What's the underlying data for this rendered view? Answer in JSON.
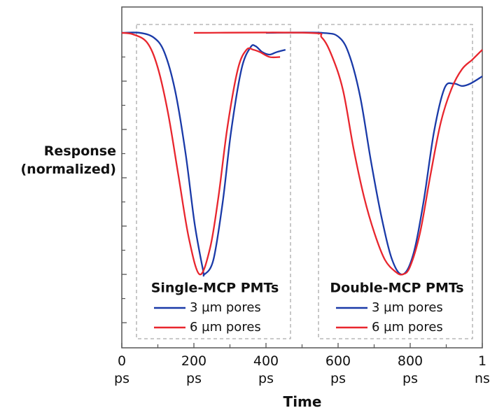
{
  "chart_data": {
    "type": "line",
    "y_label": "Response\n(normalized)",
    "x_label": "Time",
    "xlim": [
      0,
      1000
    ],
    "xticks": [
      {
        "value": 0,
        "label": "0\nps"
      },
      {
        "value": 200,
        "label": "200\nps"
      },
      {
        "value": 400,
        "label": "400\nps"
      },
      {
        "value": 600,
        "label": "600\nps"
      },
      {
        "value": 800,
        "label": "800\nps"
      },
      {
        "value": 1000,
        "label": "1\nns"
      }
    ],
    "xticks_minor": [
      100,
      300,
      500,
      700,
      900
    ],
    "ylim": [
      -1.304,
      0.107
    ],
    "yticks": [
      0,
      -0.2,
      -0.4,
      -0.6,
      -0.8,
      -1.0,
      -1.2
    ],
    "yticks_minor": [
      -0.1,
      -0.3,
      -0.5,
      -0.7,
      -0.9,
      -1.1
    ],
    "groups": [
      {
        "title": "Single-MCP PMTs",
        "series": [
          {
            "name": "3 µm pores",
            "color": "#1a3aa8",
            "x": [
              0,
              50,
              89,
              118,
              148,
              177,
              202,
              225,
              229,
              254,
              280,
              303,
              332,
              357,
              371,
              390,
              410,
              429,
              454
            ],
            "values": [
              0,
              0,
              -0.02,
              -0.08,
              -0.24,
              -0.5,
              -0.79,
              -0.98,
              -1.0,
              -0.94,
              -0.7,
              -0.41,
              -0.15,
              -0.06,
              -0.055,
              -0.08,
              -0.09,
              -0.08,
              -0.07
            ]
          },
          {
            "name": "6 µm pores",
            "color": "#e8262e",
            "x": [
              0,
              31,
              70,
              99,
              128,
              157,
              186,
              216,
              245,
              268,
              293,
              322,
              346,
              365,
              384,
              410,
              439
            ],
            "values": [
              0,
              -0.006,
              -0.04,
              -0.14,
              -0.33,
              -0.59,
              -0.85,
              -1.0,
              -0.89,
              -0.68,
              -0.39,
              -0.15,
              -0.07,
              -0.07,
              -0.08,
              -0.1,
              -0.1
            ]
          }
        ]
      },
      {
        "title": "Double-MCP PMTs",
        "series": [
          {
            "name": "3 µm pores",
            "color": "#1a3aa8",
            "x": [
              400,
              555,
              604,
              633,
              662,
              691,
              720,
              750,
              779,
              808,
              837,
              866,
              895,
              920,
              944,
              967,
              1000
            ],
            "values": [
              0,
              0,
              -0.02,
              -0.1,
              -0.27,
              -0.53,
              -0.76,
              -0.94,
              -1.0,
              -0.92,
              -0.7,
              -0.41,
              -0.23,
              -0.21,
              -0.22,
              -0.21,
              -0.18
            ]
          },
          {
            "name": "6 µm pores",
            "color": "#e8262e",
            "x": [
              200,
              517,
              555,
              584,
              614,
              643,
              672,
              701,
              730,
              760,
              779,
              799,
              827,
              856,
              885,
              915,
              944,
              973,
              1000
            ],
            "values": [
              0,
              0,
              -0.02,
              -0.1,
              -0.24,
              -0.48,
              -0.68,
              -0.83,
              -0.94,
              -0.99,
              -1.0,
              -0.97,
              -0.83,
              -0.59,
              -0.37,
              -0.23,
              -0.15,
              -0.11,
              -0.07
            ]
          }
        ]
      }
    ]
  }
}
